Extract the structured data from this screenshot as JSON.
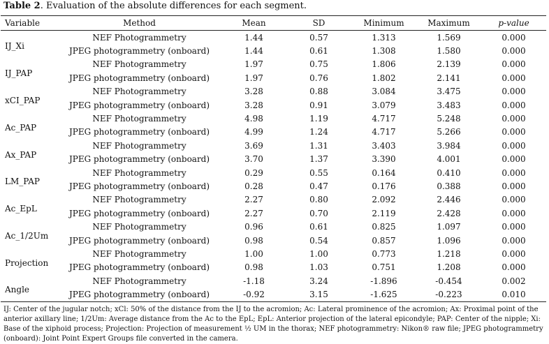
{
  "caption": {
    "label": "Table 2",
    "text": ". Evaluation of the absolute differences for each segment."
  },
  "table": {
    "headers": {
      "variable": "Variable",
      "method": "Method",
      "mean": "Mean",
      "sd": "SD",
      "minimum": "Minimum",
      "maximum": "Maximum",
      "pvalue": "p-value"
    },
    "rows": [
      {
        "variable": "IJ_Xi",
        "method": "NEF Photogrammetry",
        "mean": "1.44",
        "sd": "0.57",
        "min": "1.313",
        "max": "1.569",
        "p": "0.000"
      },
      {
        "variable": "",
        "method": "JPEG photogrammetry (onboard)",
        "mean": "1.44",
        "sd": "0.61",
        "min": "1.308",
        "max": "1.580",
        "p": "0.000"
      },
      {
        "variable": "IJ_PAP",
        "method": "NEF Photogrammetry",
        "mean": "1.97",
        "sd": "0.75",
        "min": "1.806",
        "max": "2.139",
        "p": "0.000"
      },
      {
        "variable": "",
        "method": "JPEG photogrammetry (onboard)",
        "mean": "1.97",
        "sd": "0.76",
        "min": "1.802",
        "max": "2.141",
        "p": "0.000"
      },
      {
        "variable": "xCI_PAP",
        "method": "NEF Photogrammetry",
        "mean": "3.28",
        "sd": "0.88",
        "min": "3.084",
        "max": "3.475",
        "p": "0.000"
      },
      {
        "variable": "",
        "method": "JPEG photogrammetry (onboard)",
        "mean": "3.28",
        "sd": "0.91",
        "min": "3.079",
        "max": "3.483",
        "p": "0.000"
      },
      {
        "variable": "Ac_PAP",
        "method": "NEF Photogrammetry",
        "mean": "4.98",
        "sd": "1.19",
        "min": "4.717",
        "max": "5.248",
        "p": "0.000"
      },
      {
        "variable": "",
        "method": "JPEG photogrammetry (onboard)",
        "mean": "4.99",
        "sd": "1.24",
        "min": "4.717",
        "max": "5.266",
        "p": "0.000"
      },
      {
        "variable": "Ax_PAP",
        "method": "NEF Photogrammetry",
        "mean": "3.69",
        "sd": "1.31",
        "min": "3.403",
        "max": "3.984",
        "p": "0.000"
      },
      {
        "variable": "",
        "method": "JPEG photogrammetry (onboard)",
        "mean": "3.70",
        "sd": "1.37",
        "min": "3.390",
        "max": "4.001",
        "p": "0.000"
      },
      {
        "variable": "LM_PAP",
        "method": "NEF Photogrammetry",
        "mean": "0.29",
        "sd": "0.55",
        "min": "0.164",
        "max": "0.410",
        "p": "0.000"
      },
      {
        "variable": "",
        "method": "JPEG photogrammetry (onboard)",
        "mean": "0.28",
        "sd": "0.47",
        "min": "0.176",
        "max": "0.388",
        "p": "0.000"
      },
      {
        "variable": "Ac_EpL",
        "method": "NEF Photogrammetry",
        "mean": "2.27",
        "sd": "0.80",
        "min": "2.092",
        "max": "2.446",
        "p": "0.000"
      },
      {
        "variable": "",
        "method": "JPEG photogrammetry (onboard)",
        "mean": "2.27",
        "sd": "0.70",
        "min": "2.119",
        "max": "2.428",
        "p": "0.000"
      },
      {
        "variable": "Ac_1/2Um",
        "method": "NEF Photogrammetry",
        "mean": "0.96",
        "sd": "0.61",
        "min": "0.825",
        "max": "1.097",
        "p": "0.000"
      },
      {
        "variable": "",
        "method": "JPEG photogrammetry (onboard)",
        "mean": "0.98",
        "sd": "0.54",
        "min": "0.857",
        "max": "1.096",
        "p": "0.000"
      },
      {
        "variable": "Projection",
        "method": "NEF Photogrammetry",
        "mean": "1.00",
        "sd": "1.00",
        "min": "0.773",
        "max": "1.218",
        "p": "0.000"
      },
      {
        "variable": "",
        "method": "JPEG photogrammetry (onboard)",
        "mean": "0.98",
        "sd": "1.03",
        "min": "0.751",
        "max": "1.208",
        "p": "0.000"
      },
      {
        "variable": "Angle",
        "method": "NEF Photogrammetry",
        "mean": "-1.18",
        "sd": "3.24",
        "min": "-1.896",
        "max": "-0.454",
        "p": "0.002"
      },
      {
        "variable": "",
        "method": "JPEG photogrammetry (onboard)",
        "mean": "-0.92",
        "sd": "3.15",
        "min": "-1.625",
        "max": "-0.223",
        "p": "0.010"
      }
    ]
  },
  "footnote": "IJ: Center of the jugular notch; xCl: 50% of the distance from the IJ to the acromion; Ac: Lateral prominence of the acromion; Ax: Proximal point of the anterior axillary line; 1/2Um: Average distance from the Ac to the EpL; EpL: Anterior projection of the lateral epicondyle; PAP: Center of the nipple; Xi: Base of the xiphoid process; Projection: Projection of measurement ½ UM in the thorax; NEF photogrammetry: Nikon® raw file; JPEG photogrammetry (onboard): Joint Point Expert Groups file converted in the camera."
}
